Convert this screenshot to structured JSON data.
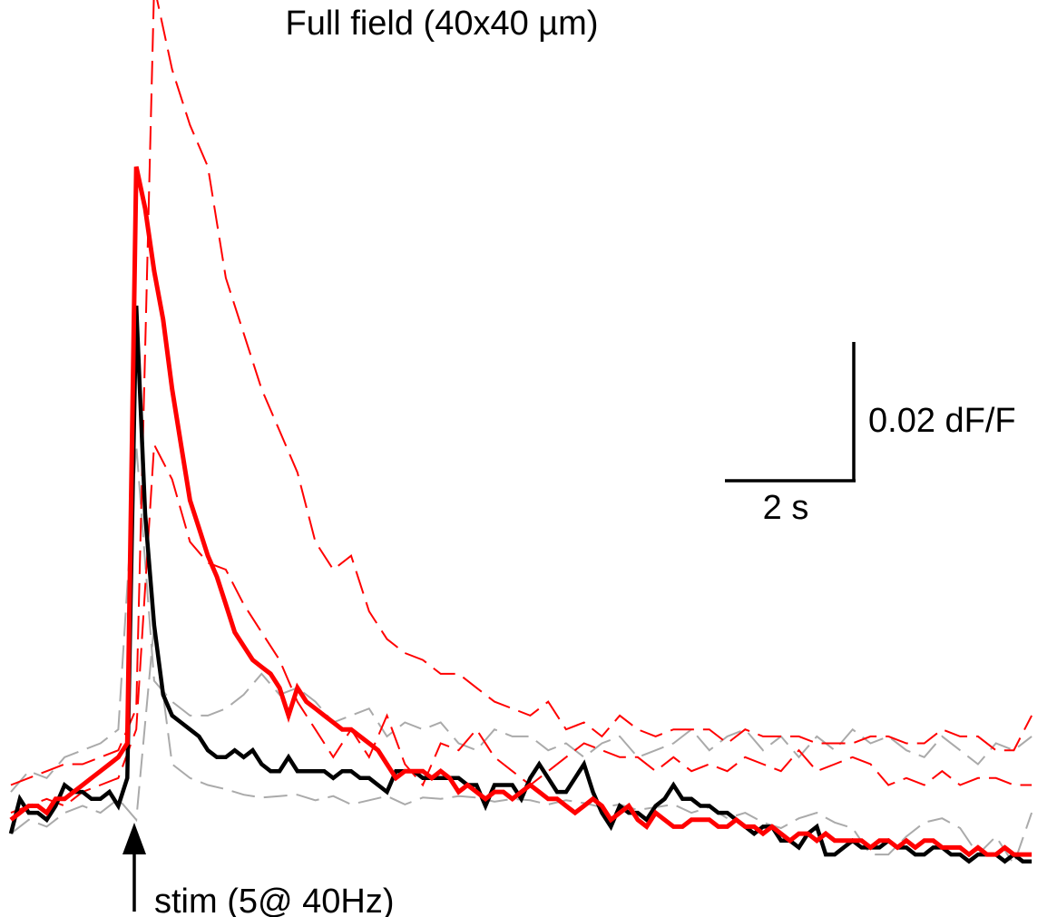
{
  "chart_data": {
    "type": "line",
    "title": "Full field (40x40 µm)",
    "xlabel": "",
    "ylabel": "",
    "xlim": [
      0,
      11.5
    ],
    "ylim": [
      -0.009,
      0.057
    ],
    "grid": false,
    "axes_visible": false,
    "annotations": {
      "stim_label": "stim (5@ 40Hz)",
      "stim_time": 1.35
    },
    "scalebar": {
      "y_label": "0.02 dF/F",
      "y_value": 0.02,
      "x_label": "2 s",
      "x_value": 1.4
    },
    "series": [
      {
        "color": "#aaaaaa",
        "dashed": true,
        "width": 2,
        "x": [
          0,
          0.2,
          0.4,
          0.6,
          0.8,
          1.0,
          1.2,
          1.4,
          1.6,
          1.8,
          2.0,
          2.2,
          2.4,
          2.6,
          2.8,
          3.0,
          3.2,
          3.4,
          3.6,
          3.8,
          4.0,
          4.2,
          4.4,
          4.6,
          4.8,
          5.0,
          5.2,
          5.4,
          5.6,
          5.8,
          6.0,
          6.2,
          6.4,
          6.6,
          6.8,
          7.0,
          7.2,
          7.4,
          7.6,
          7.8,
          8.0,
          8.2,
          8.4,
          8.6,
          8.8,
          9.0,
          9.2,
          9.4,
          9.6,
          9.8,
          10.0,
          10.2,
          10.4,
          10.6,
          10.8,
          11.0,
          11.2,
          11.4
        ],
        "y": [
          0.0,
          0.0015,
          0.001,
          0.0025,
          0.003,
          0.0035,
          0.0045,
          0.025,
          0.008,
          0.0065,
          0.0055,
          0.0055,
          0.006,
          0.007,
          0.0085,
          0.007,
          0.0075,
          0.0065,
          0.005,
          0.0055,
          0.006,
          0.004,
          0.005,
          0.0045,
          0.005,
          0.0035,
          0.003,
          0.0045,
          0.004,
          0.004,
          0.003,
          0.0035,
          0.0025,
          0.0035,
          0.004,
          0.0025,
          0.003,
          0.0035,
          0.0045,
          0.003,
          0.004,
          0.0045,
          0.003,
          0.004,
          0.0025,
          0.004,
          0.003,
          0.0045,
          0.0035,
          0.004,
          0.003,
          0.0025,
          0.004,
          0.003,
          0.002,
          0.0035,
          0.003,
          0.004
        ]
      },
      {
        "color": "#aaaaaa",
        "dashed": true,
        "width": 2,
        "x": [
          0,
          0.2,
          0.4,
          0.6,
          0.8,
          1.0,
          1.2,
          1.4,
          1.6,
          1.8,
          2.0,
          2.2,
          2.4,
          2.6,
          2.8,
          3.0,
          3.2,
          3.4,
          3.6,
          3.8,
          4.0,
          4.2,
          4.4,
          4.6,
          4.8,
          5.0,
          5.2,
          5.4,
          5.6,
          5.8,
          6.0,
          6.2,
          6.4,
          6.6,
          6.8,
          7.0,
          7.2,
          7.4,
          7.6,
          7.8,
          8.0,
          8.2,
          8.4,
          8.6,
          8.8,
          9.0,
          9.2,
          9.4,
          9.6,
          9.8,
          10.0,
          10.2,
          10.4,
          10.6,
          10.8,
          11.0,
          11.2,
          11.4
        ],
        "y": [
          -0.003,
          -0.002,
          -0.0025,
          -0.0015,
          -0.001,
          -0.0015,
          -0.0005,
          -0.002,
          0.012,
          0.002,
          0.001,
          0.0005,
          0.0002,
          -0.0002,
          -0.0004,
          -0.0003,
          -0.0002,
          -0.0006,
          -0.0003,
          -0.0009,
          -0.0006,
          -0.0003,
          -0.0009,
          -0.0004,
          -0.0005,
          -0.0003,
          -0.0004,
          -0.0007,
          -0.0005,
          -0.0006,
          -0.0009,
          -0.0006,
          -0.0008,
          -0.0011,
          -0.0009,
          -0.0013,
          -0.0011,
          -0.0009,
          -0.0015,
          -0.0011,
          -0.0019,
          -0.0015,
          -0.0022,
          -0.0026,
          -0.0019,
          -0.0015,
          -0.0022,
          -0.0026,
          -0.0045,
          -0.0045,
          -0.0032,
          -0.0022,
          -0.0019,
          -0.0026,
          -0.0045,
          -0.0032,
          -0.0052,
          -0.0015
        ]
      },
      {
        "color": "#ff0000",
        "dashed": true,
        "width": 2,
        "x": [
          0,
          0.2,
          0.4,
          0.6,
          0.8,
          1.0,
          1.2,
          1.4,
          1.6,
          1.8,
          2.0,
          2.2,
          2.4,
          2.6,
          2.8,
          3.0,
          3.2,
          3.4,
          3.6,
          3.8,
          4.0,
          4.2,
          4.4,
          4.6,
          4.8,
          5.0,
          5.2,
          5.4,
          5.6,
          5.8,
          6.0,
          6.2,
          6.4,
          6.6,
          6.8,
          7.0,
          7.2,
          7.4,
          7.6,
          7.8,
          8.0,
          8.2,
          8.4,
          8.6,
          8.8,
          9.0,
          9.2,
          9.4,
          9.6,
          9.8,
          10.0,
          10.2,
          10.4,
          10.6,
          10.8,
          11.0,
          11.2,
          11.4
        ],
        "y": [
          0.0005,
          0.001,
          0.0015,
          0.002,
          0.002,
          0.0025,
          0.003,
          0.006,
          0.058,
          0.052,
          0.048,
          0.045,
          0.037,
          0.033,
          0.029,
          0.026,
          0.023,
          0.018,
          0.016,
          0.017,
          0.013,
          0.011,
          0.01,
          0.0095,
          0.0085,
          0.0085,
          0.0075,
          0.0065,
          0.006,
          0.0055,
          0.0065,
          0.0045,
          0.005,
          0.004,
          0.0055,
          0.0045,
          0.004,
          0.0045,
          0.0045,
          0.0045,
          0.0035,
          0.0045,
          0.004,
          0.004,
          0.004,
          0.0035,
          0.0035,
          0.0035,
          0.004,
          0.004,
          0.0035,
          0.0035,
          0.0045,
          0.004,
          0.004,
          0.003,
          0.003,
          0.0055
        ]
      },
      {
        "color": "#ff0000",
        "dashed": true,
        "width": 2,
        "x": [
          0,
          0.2,
          0.4,
          0.6,
          0.8,
          1.0,
          1.2,
          1.4,
          1.6,
          1.8,
          2.0,
          2.2,
          2.4,
          2.6,
          2.8,
          3.0,
          3.2,
          3.4,
          3.6,
          3.8,
          4.0,
          4.2,
          4.4,
          4.6,
          4.8,
          5.0,
          5.2,
          5.4,
          5.6,
          5.8,
          6.0,
          6.2,
          6.4,
          6.6,
          6.8,
          7.0,
          7.2,
          7.4,
          7.6,
          7.8,
          8.0,
          8.2,
          8.4,
          8.6,
          8.8,
          9.0,
          9.2,
          9.4,
          9.6,
          9.8,
          10.0,
          10.2,
          10.4,
          10.6,
          10.8,
          11.0,
          11.2,
          11.4
        ],
        "y": [
          -0.0015,
          -0.001,
          -0.0005,
          -0.001,
          0.0,
          0.0005,
          0.001,
          0.0045,
          0.025,
          0.0225,
          0.018,
          0.0165,
          0.016,
          0.0135,
          0.0115,
          0.0095,
          0.0065,
          0.0045,
          0.0025,
          0.0045,
          0.0025,
          0.0055,
          0.002,
          0.0005,
          0.0035,
          0.003,
          0.0045,
          0.0025,
          0.0015,
          0.0005,
          0.0015,
          0.0025,
          0.0035,
          0.003,
          0.0025,
          0.0025,
          0.0015,
          0.0025,
          0.0015,
          0.002,
          0.0015,
          0.0025,
          0.002,
          0.0015,
          0.003,
          0.0015,
          0.002,
          0.0025,
          0.002,
          0.0005,
          0.001,
          0.0005,
          0.0015,
          0.0005,
          0.001,
          0.001,
          0.0005,
          0.0005
        ]
      },
      {
        "color": "#000000",
        "dashed": false,
        "width": 4.5,
        "x": [
          0,
          0.1,
          0.2,
          0.3,
          0.4,
          0.5,
          0.6,
          0.7,
          0.8,
          0.9,
          1.0,
          1.1,
          1.2,
          1.3,
          1.4,
          1.5,
          1.6,
          1.7,
          1.8,
          1.9,
          2.0,
          2.1,
          2.2,
          2.3,
          2.4,
          2.5,
          2.6,
          2.7,
          2.8,
          2.9,
          3.0,
          3.1,
          3.2,
          3.3,
          3.4,
          3.5,
          3.6,
          3.7,
          3.8,
          3.9,
          4.0,
          4.1,
          4.2,
          4.3,
          4.4,
          4.5,
          4.6,
          4.7,
          4.8,
          4.9,
          5.0,
          5.1,
          5.2,
          5.3,
          5.4,
          5.5,
          5.6,
          5.7,
          5.8,
          5.9,
          6.0,
          6.1,
          6.2,
          6.3,
          6.4,
          6.5,
          6.6,
          6.7,
          6.8,
          6.9,
          7.0,
          7.1,
          7.2,
          7.3,
          7.4,
          7.5,
          7.6,
          7.7,
          7.8,
          7.9,
          8.0,
          8.1,
          8.2,
          8.3,
          8.4,
          8.5,
          8.6,
          8.7,
          8.8,
          8.9,
          9.0,
          9.1,
          9.2,
          9.3,
          9.4,
          9.5,
          9.6,
          9.7,
          9.8,
          9.9,
          10.0,
          10.1,
          10.2,
          10.3,
          10.4,
          10.5,
          10.6,
          10.7,
          10.8,
          10.9,
          11.0,
          11.1,
          11.2,
          11.3,
          11.4
        ],
        "y": [
          -0.003,
          -0.0005,
          -0.0015,
          -0.0015,
          -0.002,
          -0.001,
          0.0005,
          0.0,
          0.0,
          -0.0005,
          -0.0005,
          0.0,
          -0.001,
          0.001,
          0.035,
          0.02,
          0.012,
          0.007,
          0.0055,
          0.005,
          0.0045,
          0.004,
          0.003,
          0.0025,
          0.0025,
          0.003,
          0.0025,
          0.003,
          0.002,
          0.0015,
          0.0015,
          0.0025,
          0.0015,
          0.0015,
          0.0015,
          0.0015,
          0.001,
          0.0015,
          0.0015,
          0.001,
          0.001,
          0.0005,
          0.0,
          0.0015,
          0.0015,
          0.0015,
          0.001,
          0.001,
          0.001,
          0.001,
          0.001,
          0.0005,
          0.0005,
          -0.001,
          0.0005,
          0.0005,
          0.0005,
          -0.0005,
          0.001,
          0.002,
          0.001,
          0.0,
          0.0,
          0.001,
          0.002,
          0.0,
          -0.0015,
          -0.0025,
          -0.001,
          -0.0015,
          -0.0015,
          -0.002,
          -0.001,
          -0.0005,
          0.0005,
          -0.0005,
          -0.0005,
          -0.001,
          -0.001,
          -0.0015,
          -0.0015,
          -0.002,
          -0.0025,
          -0.003,
          -0.0025,
          -0.0025,
          -0.0035,
          -0.0035,
          -0.004,
          -0.003,
          -0.0025,
          -0.0045,
          -0.0045,
          -0.004,
          -0.0035,
          -0.004,
          -0.004,
          -0.004,
          -0.0035,
          -0.004,
          -0.004,
          -0.0045,
          -0.0045,
          -0.004,
          -0.004,
          -0.0045,
          -0.0045,
          -0.005,
          -0.0045,
          -0.0045,
          -0.0045,
          -0.005,
          -0.0045,
          -0.005,
          -0.005
        ]
      },
      {
        "color": "#ff0000",
        "dashed": false,
        "width": 5,
        "x": [
          0,
          0.1,
          0.2,
          0.3,
          0.4,
          0.5,
          0.6,
          0.7,
          0.8,
          0.9,
          1.0,
          1.1,
          1.2,
          1.3,
          1.4,
          1.5,
          1.6,
          1.7,
          1.8,
          1.9,
          2.0,
          2.1,
          2.2,
          2.3,
          2.4,
          2.5,
          2.6,
          2.7,
          2.8,
          2.9,
          3.0,
          3.1,
          3.2,
          3.3,
          3.4,
          3.5,
          3.6,
          3.7,
          3.8,
          3.9,
          4.0,
          4.1,
          4.2,
          4.3,
          4.4,
          4.5,
          4.6,
          4.7,
          4.8,
          4.9,
          5.0,
          5.1,
          5.2,
          5.3,
          5.4,
          5.5,
          5.6,
          5.7,
          5.8,
          5.9,
          6.0,
          6.1,
          6.2,
          6.3,
          6.4,
          6.5,
          6.6,
          6.7,
          6.8,
          6.9,
          7.0,
          7.1,
          7.2,
          7.3,
          7.4,
          7.5,
          7.6,
          7.7,
          7.8,
          7.9,
          8.0,
          8.1,
          8.2,
          8.3,
          8.4,
          8.5,
          8.6,
          8.7,
          8.8,
          8.9,
          9.0,
          9.1,
          9.2,
          9.3,
          9.4,
          9.5,
          9.6,
          9.7,
          9.8,
          9.9,
          10.0,
          10.1,
          10.2,
          10.3,
          10.4,
          10.5,
          10.6,
          10.7,
          10.8,
          10.9,
          11.0,
          11.1,
          11.2,
          11.3,
          11.4
        ],
        "y": [
          -0.002,
          -0.0015,
          -0.001,
          -0.001,
          -0.0015,
          -0.0005,
          -0.0005,
          0.0,
          0.0005,
          0.001,
          0.0015,
          0.002,
          0.0025,
          0.0035,
          0.045,
          0.042,
          0.0375,
          0.034,
          0.029,
          0.025,
          0.021,
          0.019,
          0.017,
          0.0155,
          0.0135,
          0.0115,
          0.0105,
          0.0095,
          0.009,
          0.0085,
          0.0075,
          0.0055,
          0.0075,
          0.0065,
          0.006,
          0.0055,
          0.005,
          0.0045,
          0.0045,
          0.004,
          0.0035,
          0.003,
          0.002,
          0.001,
          0.0015,
          0.0015,
          0.0015,
          0.001,
          0.0015,
          0.001,
          0.0,
          0.0005,
          0.0,
          -0.0005,
          0.0,
          0.0,
          -0.0005,
          0.0,
          0.0005,
          0.0,
          -0.0005,
          -0.0005,
          -0.001,
          -0.0015,
          -0.001,
          -0.0005,
          -0.001,
          -0.002,
          -0.0015,
          -0.001,
          -0.002,
          -0.0025,
          -0.0015,
          -0.002,
          -0.0025,
          -0.0025,
          -0.002,
          -0.002,
          -0.002,
          -0.0025,
          -0.0025,
          -0.002,
          -0.0025,
          -0.0025,
          -0.003,
          -0.0025,
          -0.003,
          -0.0035,
          -0.003,
          -0.003,
          -0.0035,
          -0.003,
          -0.0035,
          -0.0035,
          -0.0035,
          -0.0035,
          -0.004,
          -0.0035,
          -0.0035,
          -0.004,
          -0.0035,
          -0.004,
          -0.0035,
          -0.0035,
          -0.004,
          -0.004,
          -0.004,
          -0.0045,
          -0.004,
          -0.0045,
          -0.0045,
          -0.004,
          -0.0045,
          -0.0045,
          -0.0045
        ]
      }
    ]
  }
}
